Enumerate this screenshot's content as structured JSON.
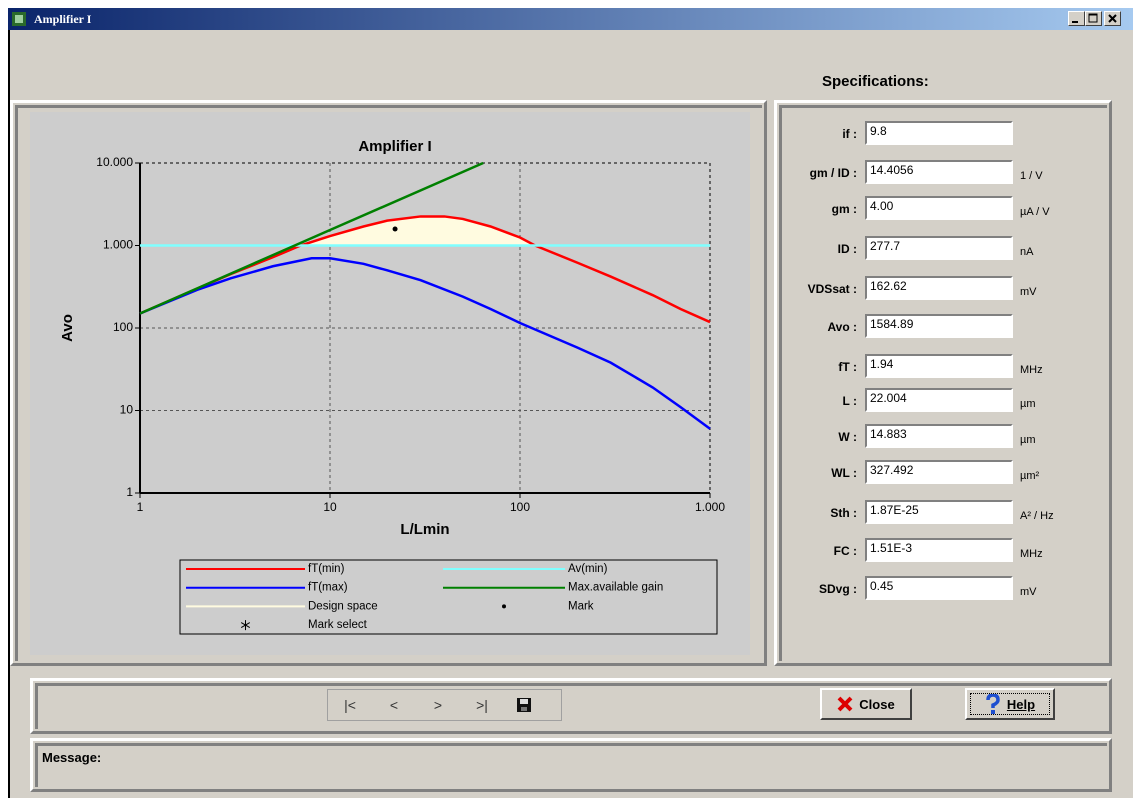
{
  "window": {
    "title": "Amplifier I"
  },
  "specifications": {
    "heading": "Specifications:",
    "fields": [
      {
        "label": "if :",
        "value": "9.8"
      },
      {
        "label": "gm / ID :",
        "value": "14.4056",
        "unit": "1 / V"
      },
      {
        "label": "gm :",
        "value": "4.00",
        "unit": "µA / V"
      },
      {
        "label": "ID :",
        "value": "277.7",
        "unit": "nA"
      },
      {
        "label": "VDSsat :",
        "value": "162.62",
        "unit": "mV"
      },
      {
        "label": "Avo :",
        "value": "1584.89"
      },
      {
        "label": "fT :",
        "value": "1.94",
        "unit": "MHz"
      },
      {
        "label": "L :",
        "value": "22.004",
        "unit": "µm"
      },
      {
        "label": "W :",
        "value": "14.883",
        "unit": "µm"
      },
      {
        "label": "WL :",
        "value": "327.492",
        "unit": "µm²"
      },
      {
        "label": "Sth :",
        "value": "1.87E-25",
        "unit": "A² / Hz"
      },
      {
        "label": "FC :",
        "value": "1.51E-3",
        "unit": "MHz"
      },
      {
        "label": "SDvg :",
        "value": "0.45",
        "unit": "mV"
      }
    ]
  },
  "toolbar": {
    "nav": [
      "|<",
      "<",
      ">",
      ">|"
    ],
    "close": "Close",
    "help": "Help"
  },
  "message": {
    "label": "Message:"
  },
  "chart_data": {
    "type": "line",
    "title": "Amplifier I",
    "xlabel": "L/Lmin",
    "ylabel": "Avo",
    "xscale": "log",
    "yscale": "log",
    "grid": true,
    "xlim": [
      1,
      1000
    ],
    "ylim": [
      1,
      10000
    ],
    "xticks": [
      1,
      10,
      100,
      {
        "value": 1000,
        "label": "1.000"
      }
    ],
    "yticks": [
      1,
      10,
      100,
      {
        "value": 1000,
        "label": "1.000"
      },
      {
        "value": 10000,
        "label": "10.000"
      }
    ],
    "series": [
      {
        "name": "fT(min)",
        "color": "#ff0000",
        "style": "line",
        "x": [
          1,
          2,
          3,
          5,
          7,
          10,
          15,
          20,
          30,
          40,
          50,
          70,
          100,
          120,
          200,
          300,
          500,
          700,
          1000
        ],
        "values": [
          150,
          300,
          450,
          720,
          1000,
          1300,
          1700,
          2000,
          2250,
          2250,
          2100,
          1700,
          1250,
          1000,
          620,
          420,
          250,
          170,
          118
        ]
      },
      {
        "name": "Av(min)",
        "color": "#80ffff",
        "style": "line",
        "x": [
          1,
          1000
        ],
        "values": [
          1000,
          1000
        ]
      },
      {
        "name": "fT(max)",
        "color": "#0000ff",
        "style": "line",
        "x": [
          1,
          2,
          3,
          5,
          8,
          10,
          15,
          20,
          30,
          50,
          70,
          100,
          200,
          300,
          500,
          700,
          1000
        ],
        "values": [
          150,
          290,
          400,
          560,
          700,
          700,
          600,
          500,
          380,
          240,
          170,
          115,
          58,
          38,
          19,
          11,
          6
        ]
      },
      {
        "name": "Max.available gain",
        "color": "#008000",
        "style": "line",
        "x": [
          1,
          10,
          64
        ],
        "values": [
          150,
          1540,
          10000
        ]
      },
      {
        "name": "Design space",
        "color": "#fffbe0",
        "style": "area",
        "x": [
          7,
          10,
          15,
          20,
          30,
          40,
          50,
          70,
          100,
          120
        ],
        "values": [
          1000,
          1300,
          1700,
          2000,
          2250,
          2250,
          2100,
          1700,
          1250,
          1000
        ]
      },
      {
        "name": "Mark",
        "color": "#000000",
        "style": "dot",
        "x": [
          22.004
        ],
        "values": [
          1584.89
        ]
      },
      {
        "name": "Mark select",
        "color": "#000000",
        "style": "asterisk",
        "x": [],
        "values": []
      }
    ]
  }
}
